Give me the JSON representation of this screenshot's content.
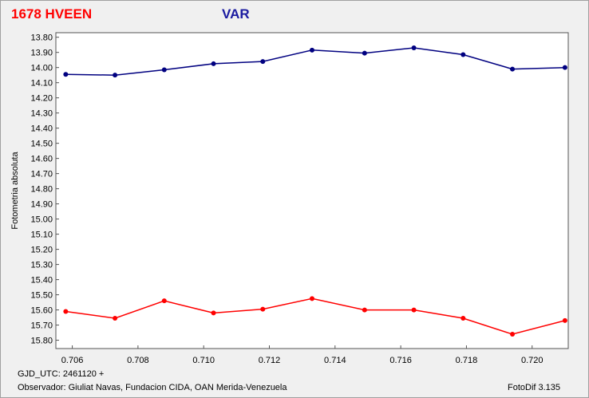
{
  "header": {
    "star_name": "1678 HVEEN",
    "series_label": "VAR"
  },
  "footer": {
    "gjd_utc": "GJD_UTC: 2461120 +",
    "observer": "Observador: Giuliat Navas, Fundacion CIDA, OAN  Merida-Venezuela",
    "software": "FotoDif 3.135"
  },
  "chart_data": {
    "type": "line",
    "title": "",
    "xlabel": "",
    "ylabel": "Fotometria absoluta",
    "xlim": [
      0.7055,
      0.7211
    ],
    "ylim": [
      13.77,
      15.855
    ],
    "y_inverted": true,
    "grid": false,
    "x_tick_labels": [
      "0.706",
      "0.708",
      "0.710",
      "0.712",
      "0.714",
      "0.716",
      "0.718",
      "0.720"
    ],
    "x_ticks": [
      0.706,
      0.708,
      0.71,
      0.712,
      0.714,
      0.716,
      0.718,
      0.72
    ],
    "y_tick_labels": [
      "13.80",
      "13.90",
      "14.00",
      "14.10",
      "14.20",
      "14.30",
      "14.40",
      "14.50",
      "14.60",
      "14.70",
      "14.80",
      "14.90",
      "15.00",
      "15.10",
      "15.20",
      "15.30",
      "15.40",
      "15.50",
      "15.60",
      "15.70",
      "15.80"
    ],
    "y_ticks": [
      13.8,
      13.9,
      14.0,
      14.1,
      14.2,
      14.3,
      14.4,
      14.5,
      14.6,
      14.7,
      14.8,
      14.9,
      15.0,
      15.1,
      15.2,
      15.3,
      15.4,
      15.5,
      15.6,
      15.7,
      15.8
    ],
    "series": [
      {
        "color": "#000080",
        "x": [
          0.7058,
          0.7073,
          0.7088,
          0.7103,
          0.7118,
          0.7133,
          0.7149,
          0.7164,
          0.7179,
          0.7194,
          0.721
        ],
        "y": [
          14.045,
          14.05,
          14.015,
          13.975,
          13.96,
          13.885,
          13.905,
          13.87,
          13.915,
          14.01,
          14.0
        ]
      },
      {
        "color": "#ff0000",
        "x": [
          0.7058,
          0.7073,
          0.7088,
          0.7103,
          0.7118,
          0.7133,
          0.7149,
          0.7164,
          0.7179,
          0.7194,
          0.721
        ],
        "y": [
          15.61,
          15.655,
          15.54,
          15.62,
          15.595,
          15.525,
          15.6,
          15.6,
          15.655,
          15.76,
          15.67
        ]
      }
    ]
  }
}
